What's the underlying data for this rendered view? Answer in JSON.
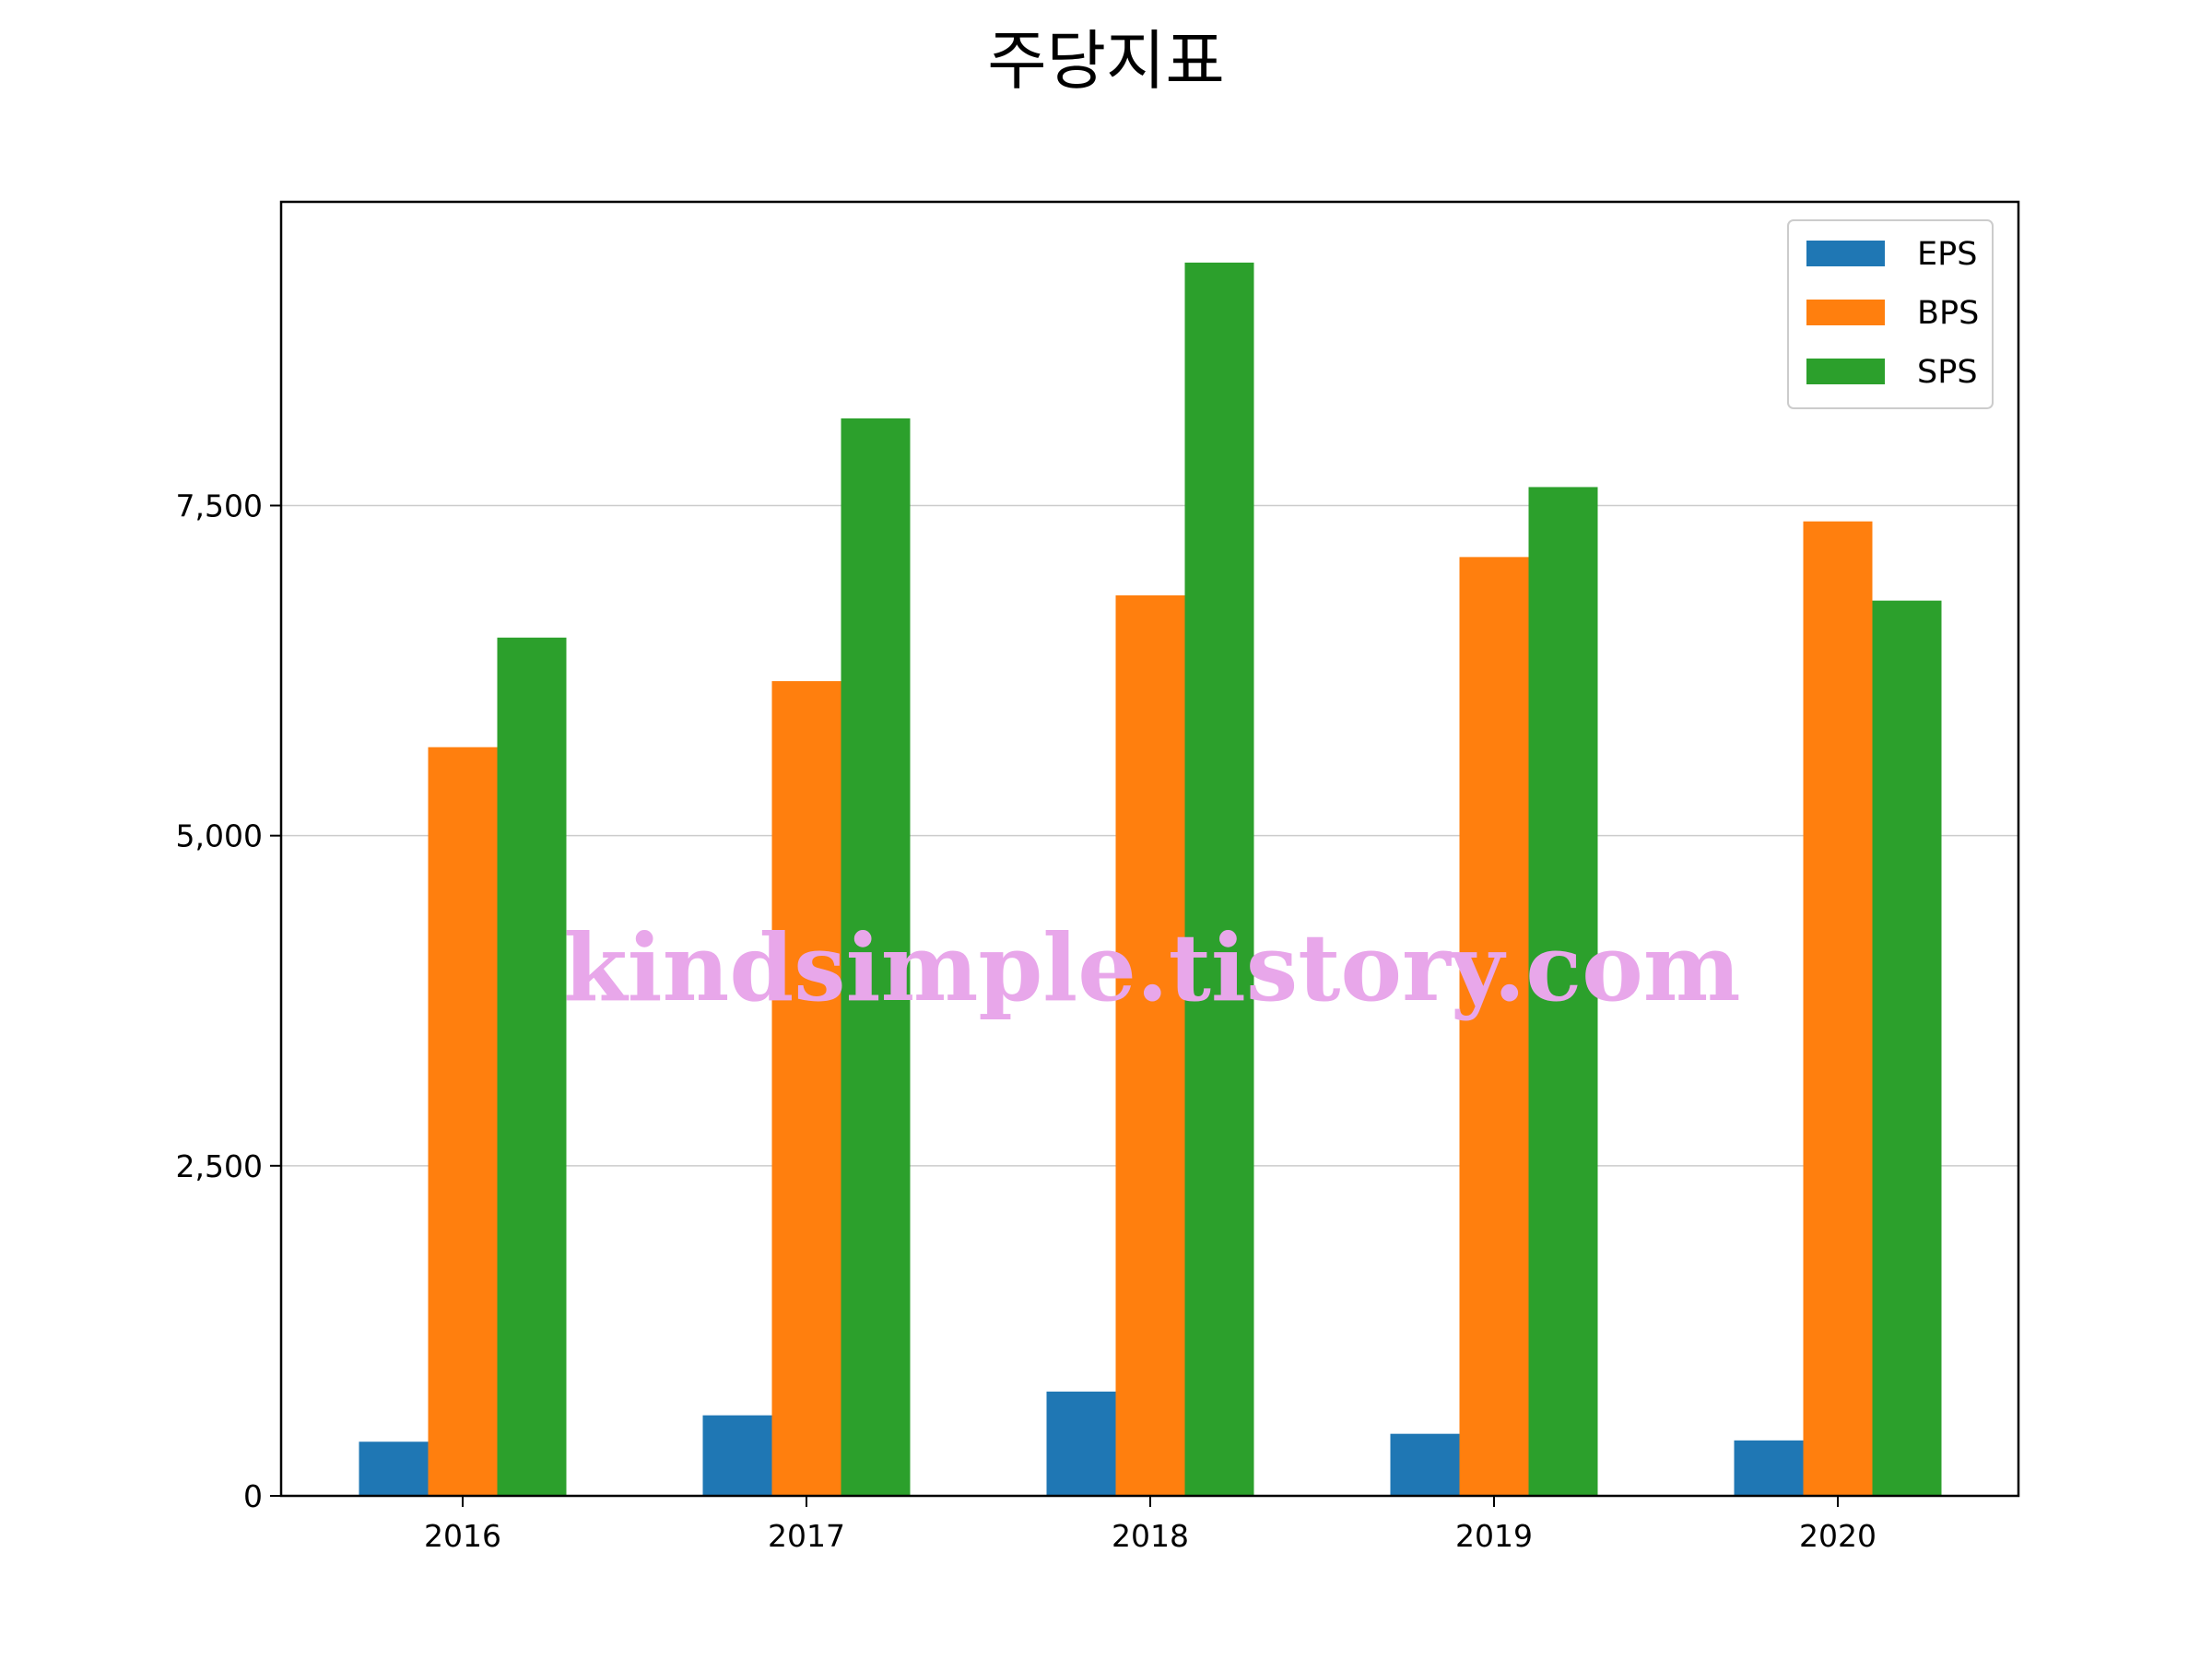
{
  "chart_data": {
    "type": "bar",
    "title": "주당지표",
    "xlabel": "",
    "ylabel": "",
    "categories": [
      "2016",
      "2017",
      "2018",
      "2019",
      "2020"
    ],
    "series": [
      {
        "name": "EPS",
        "color": "#1f77b4",
        "values": [
          410,
          610,
          790,
          470,
          420
        ]
      },
      {
        "name": "BPS",
        "color": "#ff7f0e",
        "values": [
          5670,
          6170,
          6820,
          7110,
          7380
        ]
      },
      {
        "name": "SPS",
        "color": "#2ca02c",
        "values": [
          6500,
          8160,
          9340,
          7640,
          6780
        ]
      }
    ],
    "ylim": [
      0,
      9800
    ],
    "yticks": [
      0,
      2500,
      5000,
      7500
    ],
    "ytick_labels": [
      "0",
      "2,500",
      "5,000",
      "7,500"
    ],
    "grid": "y",
    "legend_position": "top-right"
  },
  "watermark": "kindsimple.tistory.com"
}
